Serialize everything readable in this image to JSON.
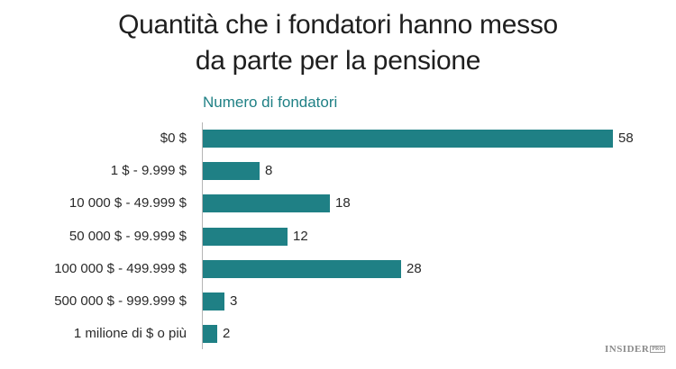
{
  "title_line1": "Quantità che i fondatori hanno messo",
  "title_line2": "da parte per la pensione",
  "axis_label": "Numero di fondatori",
  "logo": {
    "main": "INSIDER",
    "suffix": "PRO"
  },
  "colors": {
    "bar": "#1f8085",
    "axis_label": "#1f8085",
    "text": "#2a2a2a"
  },
  "chart_data": {
    "type": "bar",
    "orientation": "horizontal",
    "title": "Quantità che i fondatori hanno messo da parte per la pensione",
    "xlabel": "Numero di fondatori",
    "ylabel": "",
    "categories": [
      "$0 $",
      "1 $ - 9.999 $",
      "10 000 $ - 49.999 $",
      "50 000 $ - 99.999 $",
      "100 000 $ - 499.999 $",
      "500 000 $ - 999.999 $",
      "1 milione di $ o più"
    ],
    "values": [
      58,
      8,
      18,
      12,
      28,
      3,
      2
    ],
    "data_labels": true,
    "grid": false,
    "legend": "none",
    "xlim": [
      0,
      58
    ]
  },
  "rows": [
    {
      "label": "$0 $",
      "value": "58"
    },
    {
      "label": "1 $ - 9.999 $",
      "value": "8"
    },
    {
      "label": "10 000 $ - 49.999 $",
      "value": "18"
    },
    {
      "label": "50 000 $ - 99.999 $",
      "value": "12"
    },
    {
      "label": "100 000 $ - 499.999 $",
      "value": "28"
    },
    {
      "label": "500 000 $ - 999.999 $",
      "value": "3"
    },
    {
      "label": "1 milione di $ o più",
      "value": "2"
    }
  ]
}
